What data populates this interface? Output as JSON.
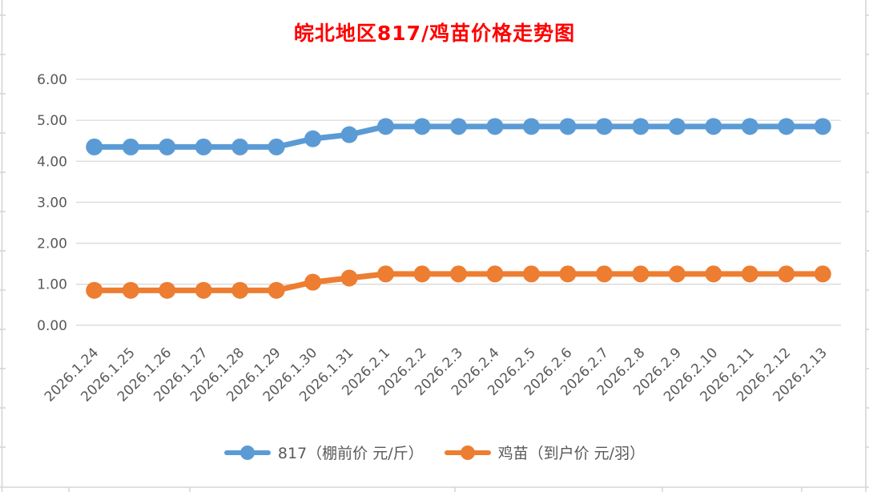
{
  "chart_data": {
    "type": "line",
    "title": "皖北地区817/鸡苗价格走势图",
    "title_color": "#FF0000",
    "categories": [
      "2026.1.24",
      "2026.1.25",
      "2026.1.26",
      "2026.1.27",
      "2026.1.28",
      "2026.1.29",
      "2026.1.30",
      "2026.1.31",
      "2026.2.1",
      "2026.2.2",
      "2026.2.3",
      "2026.2.4",
      "2026.2.5",
      "2026.2.6",
      "2026.2.7",
      "2026.2.8",
      "2026.2.9",
      "2026.2.10",
      "2026.2.11",
      "2026.2.12",
      "2026.2.13"
    ],
    "series": [
      {
        "name": "817（棚前价 元/斤）",
        "color": "#5B9BD5",
        "values": [
          4.35,
          4.35,
          4.35,
          4.35,
          4.35,
          4.35,
          4.55,
          4.65,
          4.85,
          4.85,
          4.85,
          4.85,
          4.85,
          4.85,
          4.85,
          4.85,
          4.85,
          4.85,
          4.85,
          4.85,
          4.85
        ]
      },
      {
        "name": "鸡苗（到户价 元/羽）",
        "color": "#ED7D31",
        "values": [
          0.85,
          0.85,
          0.85,
          0.85,
          0.85,
          0.85,
          1.05,
          1.15,
          1.25,
          1.25,
          1.25,
          1.25,
          1.25,
          1.25,
          1.25,
          1.25,
          1.25,
          1.25,
          1.25,
          1.25,
          1.25
        ]
      }
    ],
    "ylim": [
      0,
      6
    ],
    "ytick_labels": [
      "0.00",
      "1.00",
      "2.00",
      "3.00",
      "4.00",
      "5.00",
      "6.00"
    ],
    "grid": "horizontal-only",
    "legend_position": "bottom",
    "xlabel": "",
    "ylabel": "",
    "marker": "circle",
    "x_label_rotation_deg": 45,
    "axis_text_color": "#595959",
    "gridline_color": "#D9D9D9",
    "spreadsheet_line_color": "#D6D6D6"
  }
}
